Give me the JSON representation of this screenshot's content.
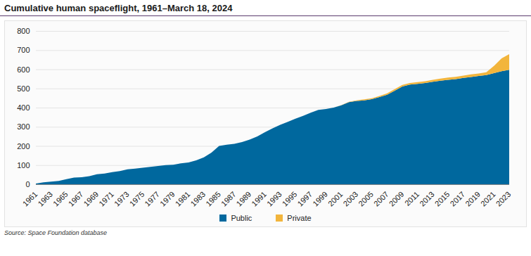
{
  "chart_data": {
    "type": "area",
    "title": "Cumulative human spaceflight, 1961–March 18, 2024",
    "caption": "Source: Space Foundation database",
    "x": [
      1961,
      1962,
      1963,
      1964,
      1965,
      1966,
      1967,
      1968,
      1969,
      1970,
      1971,
      1972,
      1973,
      1974,
      1975,
      1976,
      1977,
      1978,
      1979,
      1980,
      1981,
      1982,
      1983,
      1984,
      1985,
      1986,
      1987,
      1988,
      1989,
      1990,
      1991,
      1992,
      1993,
      1994,
      1995,
      1996,
      1997,
      1998,
      1999,
      2000,
      2001,
      2002,
      2003,
      2004,
      2005,
      2006,
      2007,
      2008,
      2009,
      2010,
      2011,
      2012,
      2013,
      2014,
      2015,
      2016,
      2017,
      2018,
      2019,
      2020,
      2021,
      2022,
      2023
    ],
    "series": [
      {
        "name": "Public",
        "color": "#00689e",
        "values": [
          4,
          10,
          14,
          17,
          27,
          35,
          37,
          42,
          52,
          56,
          63,
          69,
          78,
          82,
          86,
          91,
          95,
          100,
          102,
          109,
          114,
          125,
          140,
          165,
          200,
          206,
          211,
          220,
          233,
          250,
          272,
          292,
          310,
          326,
          342,
          357,
          373,
          388,
          393,
          400,
          412,
          428,
          435,
          438,
          444,
          455,
          467,
          488,
          510,
          520,
          524,
          528,
          535,
          540,
          545,
          549,
          555,
          560,
          565,
          570,
          580,
          590,
          597
        ]
      },
      {
        "name": "Private",
        "color": "#f2b53c",
        "values": [
          0,
          0,
          0,
          0,
          0,
          0,
          0,
          0,
          0,
          0,
          0,
          0,
          0,
          0,
          0,
          0,
          0,
          0,
          0,
          0,
          0,
          0,
          0,
          0,
          0,
          0,
          0,
          0,
          0,
          0,
          0,
          0,
          0,
          0,
          0,
          0,
          0,
          0,
          0,
          0,
          1,
          2,
          3,
          5,
          5,
          6,
          7,
          8,
          8,
          8,
          9,
          10,
          10,
          11,
          12,
          12,
          12,
          13,
          13,
          14,
          37,
          67,
          82
        ]
      }
    ],
    "xlim": [
      1961,
      2023
    ],
    "xticks": [
      1961,
      1963,
      1965,
      1967,
      1969,
      1971,
      1973,
      1975,
      1977,
      1979,
      1981,
      1983,
      1985,
      1987,
      1989,
      1991,
      1993,
      1995,
      1997,
      1999,
      2001,
      2003,
      2005,
      2007,
      2009,
      2011,
      2013,
      2015,
      2017,
      2019,
      2021,
      2023
    ],
    "ylim": [
      0,
      800
    ],
    "yticks": [
      0,
      100,
      200,
      300,
      400,
      500,
      600,
      700,
      800
    ],
    "stacked": true,
    "grid": true,
    "legend": "bottom"
  }
}
